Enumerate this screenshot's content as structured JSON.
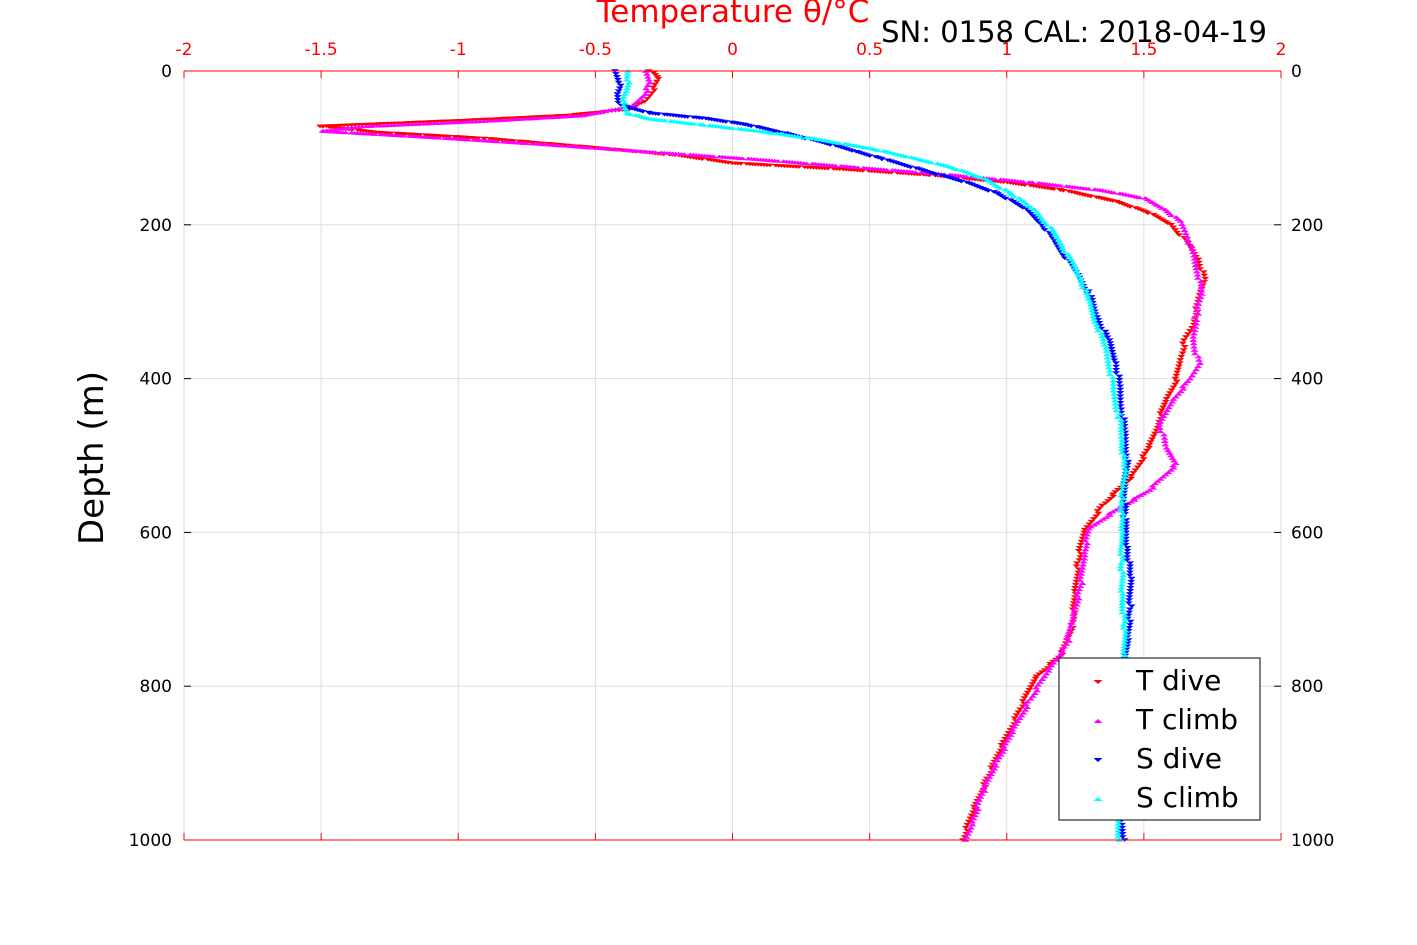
{
  "chart_data": {
    "type": "scatter",
    "title": "Temperature θ/°C",
    "subtitle": "SN: 0158  CAL: 2018-04-19",
    "xlabel": "Temperature θ/°C",
    "ylabel": "Depth (m)",
    "xlim": [
      -2,
      2
    ],
    "ylim": [
      0,
      1000
    ],
    "y_reversed": true,
    "x_ticks": [
      "-2",
      "-1.5",
      "-1",
      "-0.5",
      "0",
      "0.5",
      "1",
      "1.5",
      "2"
    ],
    "y_ticks": [
      "0",
      "200",
      "400",
      "600",
      "800",
      "1000"
    ],
    "grid": true,
    "legend_position": "bottom-right",
    "series": [
      {
        "name": "T dive",
        "marker": "triangle-down",
        "color": "#ff0000",
        "points": [
          [
            -0.3,
            0
          ],
          [
            -0.27,
            10
          ],
          [
            -0.29,
            25
          ],
          [
            -0.32,
            40
          ],
          [
            -0.38,
            50
          ],
          [
            -0.6,
            58
          ],
          [
            -1.0,
            65
          ],
          [
            -1.5,
            72
          ],
          [
            -1.3,
            80
          ],
          [
            -0.9,
            88
          ],
          [
            -0.5,
            100
          ],
          [
            -0.2,
            110
          ],
          [
            0.0,
            120
          ],
          [
            0.4,
            128
          ],
          [
            0.7,
            135
          ],
          [
            1.0,
            145
          ],
          [
            1.2,
            155
          ],
          [
            1.4,
            170
          ],
          [
            1.52,
            185
          ],
          [
            1.6,
            200
          ],
          [
            1.65,
            220
          ],
          [
            1.7,
            245
          ],
          [
            1.72,
            270
          ],
          [
            1.7,
            300
          ],
          [
            1.68,
            330
          ],
          [
            1.65,
            350
          ],
          [
            1.63,
            380
          ],
          [
            1.62,
            400
          ],
          [
            1.58,
            430
          ],
          [
            1.55,
            460
          ],
          [
            1.52,
            490
          ],
          [
            1.45,
            530
          ],
          [
            1.35,
            565
          ],
          [
            1.28,
            600
          ],
          [
            1.26,
            640
          ],
          [
            1.25,
            680
          ],
          [
            1.24,
            720
          ],
          [
            1.2,
            760
          ],
          [
            1.1,
            790
          ],
          [
            1.05,
            830
          ],
          [
            0.98,
            880
          ],
          [
            0.93,
            920
          ],
          [
            0.88,
            960
          ],
          [
            0.84,
            1000
          ]
        ]
      },
      {
        "name": "T climb",
        "marker": "triangle-up",
        "color": "#ff00ff",
        "points": [
          [
            -0.32,
            0
          ],
          [
            -0.3,
            15
          ],
          [
            -0.32,
            30
          ],
          [
            -0.36,
            45
          ],
          [
            -0.55,
            58
          ],
          [
            -0.9,
            65
          ],
          [
            -1.35,
            72
          ],
          [
            -1.5,
            78
          ],
          [
            -1.1,
            86
          ],
          [
            -0.7,
            95
          ],
          [
            -0.3,
            105
          ],
          [
            0.1,
            115
          ],
          [
            0.45,
            125
          ],
          [
            0.8,
            135
          ],
          [
            1.1,
            145
          ],
          [
            1.35,
            155
          ],
          [
            1.5,
            165
          ],
          [
            1.58,
            180
          ],
          [
            1.63,
            195
          ],
          [
            1.66,
            215
          ],
          [
            1.68,
            240
          ],
          [
            1.7,
            265
          ],
          [
            1.71,
            290
          ],
          [
            1.69,
            320
          ],
          [
            1.68,
            350
          ],
          [
            1.7,
            380
          ],
          [
            1.67,
            400
          ],
          [
            1.6,
            430
          ],
          [
            1.56,
            460
          ],
          [
            1.58,
            490
          ],
          [
            1.62,
            510
          ],
          [
            1.52,
            545
          ],
          [
            1.38,
            575
          ],
          [
            1.3,
            595
          ],
          [
            1.28,
            630
          ],
          [
            1.27,
            670
          ],
          [
            1.24,
            710
          ],
          [
            1.22,
            745
          ],
          [
            1.15,
            780
          ],
          [
            1.08,
            820
          ],
          [
            1.02,
            860
          ],
          [
            0.96,
            900
          ],
          [
            0.91,
            940
          ],
          [
            0.87,
            980
          ],
          [
            0.85,
            1000
          ]
        ]
      },
      {
        "name": "S dive",
        "marker": "triangle-down",
        "color": "#0000ff",
        "points": [
          [
            -0.43,
            0
          ],
          [
            -0.41,
            15
          ],
          [
            -0.42,
            30
          ],
          [
            -0.41,
            45
          ],
          [
            -0.3,
            55
          ],
          [
            -0.1,
            62
          ],
          [
            0.05,
            70
          ],
          [
            0.2,
            82
          ],
          [
            0.35,
            95
          ],
          [
            0.45,
            105
          ],
          [
            0.55,
            115
          ],
          [
            0.7,
            130
          ],
          [
            0.85,
            145
          ],
          [
            0.97,
            160
          ],
          [
            1.07,
            180
          ],
          [
            1.13,
            200
          ],
          [
            1.17,
            220
          ],
          [
            1.21,
            240
          ],
          [
            1.26,
            265
          ],
          [
            1.3,
            290
          ],
          [
            1.33,
            320
          ],
          [
            1.37,
            350
          ],
          [
            1.4,
            380
          ],
          [
            1.41,
            410
          ],
          [
            1.42,
            440
          ],
          [
            1.43,
            470
          ],
          [
            1.44,
            500
          ],
          [
            1.43,
            540
          ],
          [
            1.43,
            580
          ],
          [
            1.44,
            620
          ],
          [
            1.45,
            660
          ],
          [
            1.45,
            700
          ],
          [
            1.44,
            740
          ],
          [
            1.43,
            780
          ],
          [
            1.43,
            820
          ],
          [
            1.42,
            860
          ],
          [
            1.41,
            900
          ],
          [
            1.41,
            940
          ],
          [
            1.42,
            980
          ],
          [
            1.43,
            1000
          ]
        ]
      },
      {
        "name": "S climb",
        "marker": "triangle-up",
        "color": "#00ffff",
        "points": [
          [
            -0.38,
            0
          ],
          [
            -0.38,
            15
          ],
          [
            -0.39,
            30
          ],
          [
            -0.4,
            45
          ],
          [
            -0.38,
            55
          ],
          [
            -0.3,
            62
          ],
          [
            -0.1,
            70
          ],
          [
            0.1,
            78
          ],
          [
            0.3,
            88
          ],
          [
            0.5,
            100
          ],
          [
            0.65,
            112
          ],
          [
            0.8,
            125
          ],
          [
            0.92,
            140
          ],
          [
            1.02,
            160
          ],
          [
            1.1,
            180
          ],
          [
            1.15,
            200
          ],
          [
            1.19,
            220
          ],
          [
            1.23,
            245
          ],
          [
            1.27,
            270
          ],
          [
            1.3,
            300
          ],
          [
            1.33,
            330
          ],
          [
            1.36,
            360
          ],
          [
            1.38,
            390
          ],
          [
            1.39,
            420
          ],
          [
            1.41,
            450
          ],
          [
            1.42,
            480
          ],
          [
            1.43,
            520
          ],
          [
            1.42,
            560
          ],
          [
            1.42,
            600
          ],
          [
            1.42,
            640
          ],
          [
            1.42,
            680
          ],
          [
            1.43,
            720
          ],
          [
            1.43,
            760
          ],
          [
            1.42,
            800
          ],
          [
            1.41,
            850
          ],
          [
            1.41,
            900
          ],
          [
            1.4,
            950
          ],
          [
            1.41,
            1000
          ]
        ]
      }
    ]
  }
}
